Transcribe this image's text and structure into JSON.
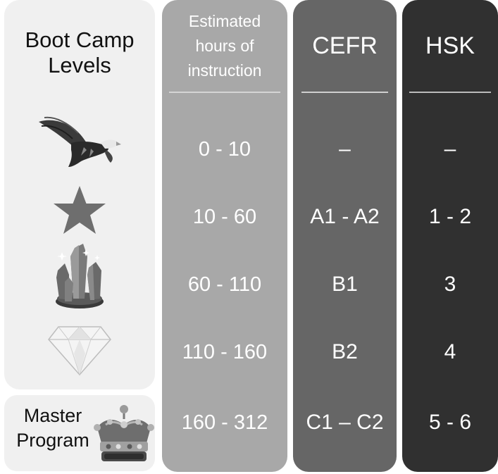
{
  "levels": {
    "header_line1": "Boot Camp",
    "header_line2": "Levels",
    "icons": [
      "eagle-icon",
      "star-icon",
      "crystal-icon",
      "diamond-icon"
    ],
    "master_line1": "Master",
    "master_line2": "Program",
    "master_icon": "crown-icon"
  },
  "hours": {
    "header_line1": "Estimated",
    "header_line2": "hours of",
    "header_line3": "instruction",
    "rows": [
      "0 - 10",
      "10 - 60",
      "60 - 110",
      "110 - 160",
      "160 - 312"
    ]
  },
  "cefr": {
    "header": "CEFR",
    "rows": [
      "–",
      "A1 - A2",
      "B1",
      "B2",
      "C1 – C2"
    ]
  },
  "hsk": {
    "header": "HSK",
    "rows": [
      "–",
      "1 - 2",
      "3",
      "4",
      "5 - 6"
    ]
  },
  "colors": {
    "levels_bg": "#f0f0f0",
    "hours_bg": "#a8a8a8",
    "cefr_bg": "#666666",
    "hsk_bg": "#303030"
  }
}
